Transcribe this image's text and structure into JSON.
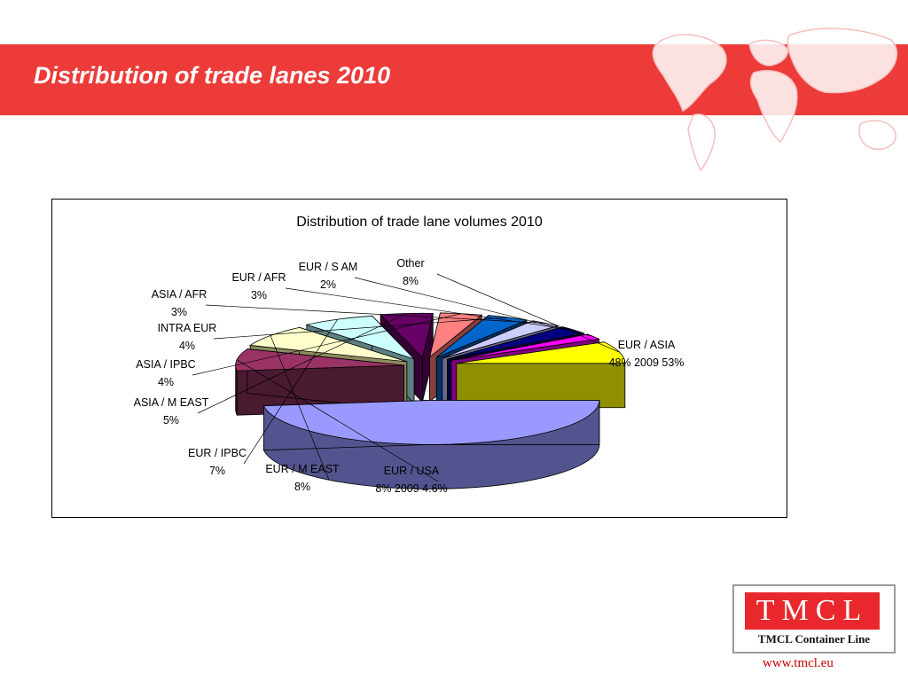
{
  "slide": {
    "title": "Distribution of trade lanes 2010",
    "accent_color": "#ec3b39"
  },
  "logo": {
    "letters": "TMCL",
    "subtitle": "TMCL Container Line"
  },
  "footer": {
    "url": "www.tmcl.eu"
  },
  "chart_data": {
    "type": "pie",
    "style": "3d-exploded",
    "title": "Distribution of trade lane volumes 2010",
    "units": "%",
    "slices": [
      {
        "name": "EUR /  ASIA",
        "value": 48,
        "label_lines": [
          "EUR /  ASIA",
          "48% 2009 53%"
        ],
        "color": "#9999ff",
        "side_color": "#53548f"
      },
      {
        "name": "EUR / USA",
        "value": 8,
        "label_lines": [
          "EUR / USA",
          "8% 2009 4.6%"
        ],
        "color": "#993366",
        "side_color": "#4a1a30"
      },
      {
        "name": "EUR / M EAST",
        "value": 8,
        "label_lines": [
          "EUR / M EAST",
          "8%"
        ],
        "color": "#ffffcc",
        "side_color": "#8d8a5e"
      },
      {
        "name": "EUR / IPBC",
        "value": 7,
        "label_lines": [
          "EUR / IPBC",
          "7%"
        ],
        "color": "#ccffff",
        "side_color": "#5e7f82"
      },
      {
        "name": "ASIA / M EAST",
        "value": 5,
        "label_lines": [
          "ASIA / M EAST",
          "5%"
        ],
        "color": "#660066",
        "side_color": "#340033"
      },
      {
        "name": "ASIA / IPBC",
        "value": 4,
        "label_lines": [
          "ASIA / IPBC",
          "4%"
        ],
        "color": "#ff8080",
        "side_color": "#8a3f3f"
      },
      {
        "name": "INTRA EUR",
        "value": 4,
        "label_lines": [
          "INTRA EUR",
          "4%"
        ],
        "color": "#0066cc",
        "side_color": "#003366"
      },
      {
        "name": "ASIA  /  AFR",
        "value": 3,
        "label_lines": [
          "ASIA  /  AFR",
          "3%"
        ],
        "color": "#ccccff",
        "side_color": "#6a6a8f"
      },
      {
        "name": "EUR / AFR",
        "value": 3,
        "label_lines": [
          "EUR / AFR",
          "3%"
        ],
        "color": "#000080",
        "side_color": "#000040"
      },
      {
        "name": "EUR / S AM",
        "value": 2,
        "label_lines": [
          "EUR / S AM",
          "2%"
        ],
        "color": "#ff00ff",
        "side_color": "#800080"
      },
      {
        "name": "Other",
        "value": 8,
        "label_lines": [
          "Other",
          "8%"
        ],
        "color": "#ffff00",
        "side_color": "#8f8f00"
      }
    ]
  }
}
